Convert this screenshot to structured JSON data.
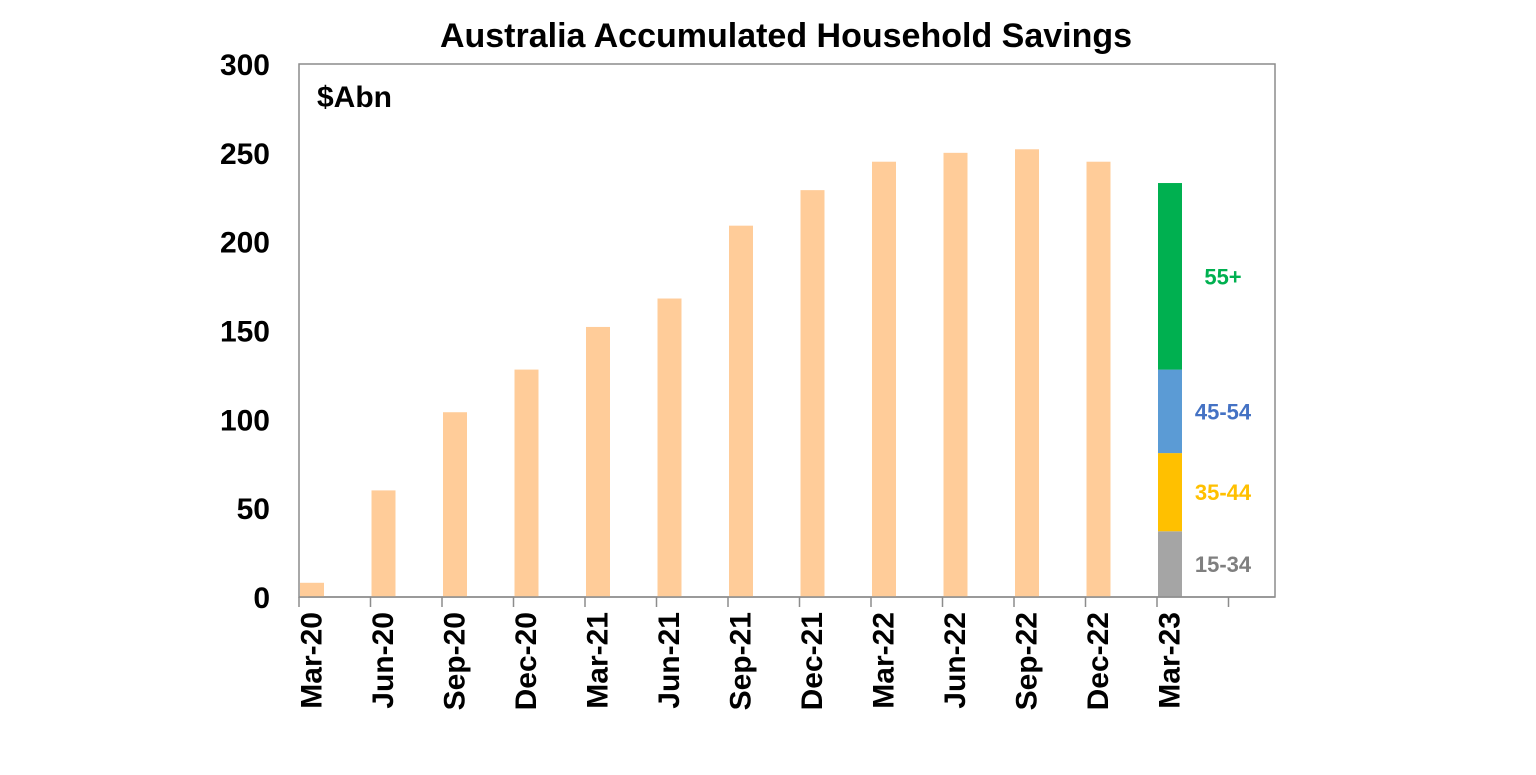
{
  "chart_data": {
    "type": "bar",
    "title": "Australia Accumulated Household Savings",
    "unit_label": "$Abn",
    "xlabel": "",
    "ylabel": "",
    "ylim": [
      0,
      300
    ],
    "yticks": [
      "0",
      "50",
      "100",
      "150",
      "200",
      "250",
      "300"
    ],
    "grid": false,
    "categories": [
      "Mar-20",
      "Jun-20",
      "Sep-20",
      "Dec-20",
      "Mar-21",
      "Jun-21",
      "Sep-21",
      "Dec-21",
      "Mar-22",
      "Jun-22",
      "Sep-22",
      "Dec-22",
      "Mar-23"
    ],
    "values": [
      8,
      60,
      104,
      128,
      152,
      168,
      209,
      229,
      245,
      250,
      252,
      245,
      null
    ],
    "bar_color": "#FFCC99",
    "stacked_breakdown": {
      "category": "Mar-23",
      "segments": [
        {
          "name": "15-34",
          "value": 37,
          "color": "#A5A5A5",
          "label_color": "#7F7F7F"
        },
        {
          "name": "35-44",
          "value": 44,
          "color": "#FFC000",
          "label_color": "#FFC000"
        },
        {
          "name": "45-54",
          "value": 47,
          "color": "#5B9BD5",
          "label_color": "#4472C4"
        },
        {
          "name": "55+",
          "value": 105,
          "color": "#00B050",
          "label_color": "#00B050"
        }
      ]
    }
  }
}
